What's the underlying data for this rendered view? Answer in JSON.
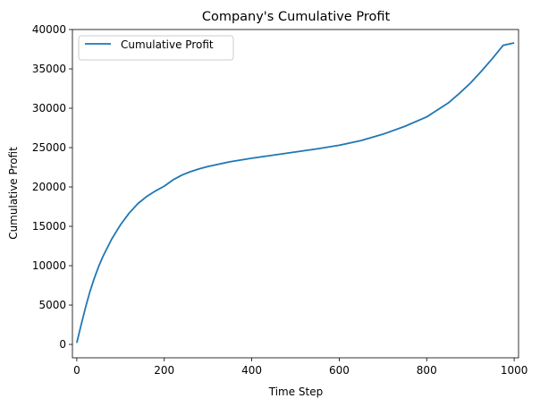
{
  "chart_data": {
    "type": "line",
    "title": "Company's Cumulative Profit",
    "xlabel": "Time Step",
    "ylabel": "Cumulative Profit",
    "xlim": [
      -10,
      1010
    ],
    "ylim": [
      -1700,
      40000
    ],
    "xticks": [
      0,
      200,
      400,
      600,
      800,
      1000
    ],
    "yticks": [
      0,
      5000,
      10000,
      15000,
      20000,
      25000,
      30000,
      35000,
      40000
    ],
    "grid": false,
    "legend_position": "upper-left",
    "series": [
      {
        "name": "Cumulative Profit",
        "color": "#1f77b4",
        "x": [
          0,
          10,
          20,
          30,
          40,
          50,
          60,
          80,
          100,
          120,
          140,
          160,
          180,
          200,
          220,
          240,
          260,
          280,
          300,
          350,
          400,
          450,
          500,
          550,
          600,
          650,
          700,
          750,
          800,
          850,
          875,
          900,
          925,
          950,
          975,
          1000
        ],
        "y": [
          200,
          2500,
          4700,
          6700,
          8400,
          9900,
          11200,
          13400,
          15200,
          16700,
          17900,
          18800,
          19500,
          20100,
          20900,
          21500,
          21950,
          22300,
          22600,
          23200,
          23650,
          24050,
          24450,
          24850,
          25300,
          25900,
          26700,
          27700,
          28900,
          30700,
          31900,
          33200,
          34700,
          36300,
          38000,
          38300
        ]
      }
    ]
  }
}
